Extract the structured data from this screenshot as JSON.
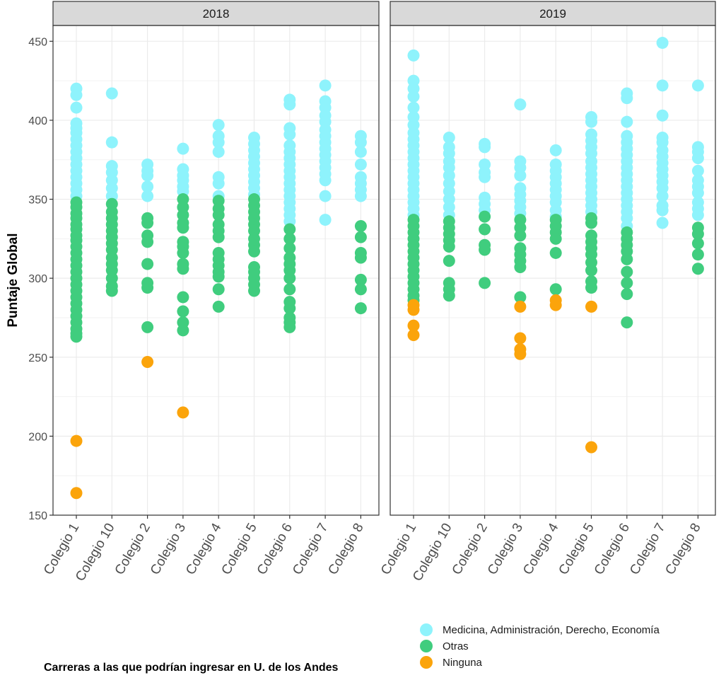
{
  "chart_data": {
    "type": "scatter",
    "ylabel": "Puntaje Global",
    "ylim": [
      150,
      460
    ],
    "y_ticks": [
      150,
      200,
      250,
      300,
      350,
      400,
      450
    ],
    "grid": true,
    "categories": [
      "Colegio 1",
      "Colegio 10",
      "Colegio 2",
      "Colegio 3",
      "Colegio 4",
      "Colegio 5",
      "Colegio 6",
      "Colegio 7",
      "Colegio 8"
    ],
    "facets": [
      "2018",
      "2019"
    ],
    "legend": {
      "title": "Carreras a las que podrían ingresar en U. de los Andes",
      "placement": "bottom",
      "entries": [
        {
          "name": "Medicina, Administración, Derecho, Economía",
          "color": "#8ef3fc"
        },
        {
          "name": "Otras",
          "color": "#40cd7e"
        },
        {
          "name": "Ninguna",
          "color": "#fba40b"
        }
      ]
    },
    "series": [
      {
        "name": "Medicina, Administración, Derecho, Economía",
        "points": {
          "2018": {
            "Colegio 1": [
              420,
              416,
              408,
              398,
              395,
              392,
              388,
              384,
              380,
              376,
              372,
              368,
              364,
              360,
              356,
              352
            ],
            "Colegio 10": [
              417,
              386,
              371,
              367,
              362,
              357,
              352
            ],
            "Colegio 2": [
              372,
              368,
              365,
              358,
              352
            ],
            "Colegio 3": [
              382,
              369,
              365,
              362,
              358,
              355
            ],
            "Colegio 4": [
              397,
              390,
              386,
              380,
              364,
              360,
              352
            ],
            "Colegio 5": [
              389,
              385,
              381,
              377,
              373,
              369,
              365,
              361,
              357,
              353
            ],
            "Colegio 6": [
              413,
              410,
              395,
              391,
              384,
              380,
              376,
              372,
              368,
              364,
              360,
              356,
              352,
              348,
              344,
              340,
              336
            ],
            "Colegio 7": [
              422,
              412,
              408,
              403,
              399,
              394,
              390,
              386,
              382,
              378,
              374,
              370,
              366,
              362,
              352,
              337
            ],
            "Colegio 8": [
              390,
              386,
              380,
              372,
              364,
              360,
              356,
              352
            ]
          },
          "2019": {
            "Colegio 1": [
              441,
              425,
              420,
              415,
              408,
              402,
              397,
              392,
              388,
              384,
              380,
              376,
              372,
              368,
              364,
              360,
              356,
              352,
              348,
              344,
              340
            ],
            "Colegio 10": [
              389,
              383,
              379,
              374,
              370,
              365,
              360,
              355,
              350,
              345,
              340
            ],
            "Colegio 2": [
              385,
              383,
              372,
              367,
              364,
              351,
              347,
              343
            ],
            "Colegio 3": [
              410,
              374,
              370,
              365,
              357,
              353,
              349,
              345,
              341
            ],
            "Colegio 4": [
              381,
              372,
              368,
              364,
              360,
              356,
              352,
              348,
              343,
              339
            ],
            "Colegio 5": [
              402,
              399,
              391,
              387,
              383,
              379,
              374,
              370,
              366,
              362,
              358,
              354,
              350,
              346,
              342
            ],
            "Colegio 6": [
              417,
              414,
              399,
              390,
              386,
              382,
              378,
              374,
              370,
              366,
              362,
              358,
              354,
              350,
              346,
              342,
              338,
              333
            ],
            "Colegio 7": [
              449,
              422,
              403,
              389,
              386,
              381,
              377,
              373,
              369,
              365,
              361,
              357,
              352,
              346,
              343,
              335
            ],
            "Colegio 8": [
              422,
              383,
              380,
              376,
              368,
              362,
              358,
              354,
              348,
              344,
              340
            ]
          }
        }
      },
      {
        "name": "Otras",
        "points": {
          "2018": {
            "Colegio 1": [
              348,
              345,
              341,
              338,
              334,
              331,
              327,
              324,
              320,
              316,
              312,
              308,
              304,
              300,
              296,
              292,
              288,
              284,
              280,
              276,
              272,
              268,
              265,
              263
            ],
            "Colegio 10": [
              347,
              342,
              338,
              334,
              330,
              326,
              322,
              318,
              313,
              309,
              305,
              300,
              295,
              292
            ],
            "Colegio 2": [
              338,
              335,
              327,
              323,
              309,
              297,
              294,
              269
            ],
            "Colegio 3": [
              350,
              345,
              340,
              335,
              332,
              323,
              320,
              316,
              309,
              306,
              288,
              279,
              272,
              267
            ],
            "Colegio 4": [
              349,
              344,
              340,
              334,
              330,
              326,
              316,
              312,
              308,
              304,
              301,
              293,
              282
            ],
            "Colegio 5": [
              350,
              346,
              342,
              338,
              334,
              330,
              325,
              321,
              317,
              307,
              304,
              300,
              296,
              292
            ],
            "Colegio 6": [
              331,
              325,
              319,
              313,
              309,
              305,
              300,
              293,
              285,
              281,
              275,
              272,
              269
            ],
            "Colegio 8": [
              333,
              326,
              316,
              313,
              299,
              293,
              281
            ]
          },
          "2019": {
            "Colegio 1": [
              337,
              333,
              329,
              325,
              321,
              317,
              313,
              309,
              305,
              301,
              297,
              293,
              289,
              286
            ],
            "Colegio 10": [
              336,
              332,
              328,
              324,
              320,
              311,
              297,
              293,
              289
            ],
            "Colegio 2": [
              339,
              331,
              321,
              318,
              297
            ],
            "Colegio 3": [
              337,
              332,
              327,
              319,
              315,
              311,
              307,
              288
            ],
            "Colegio 4": [
              337,
              333,
              329,
              325,
              316,
              293
            ],
            "Colegio 5": [
              338,
              335,
              327,
              323,
              319,
              315,
              310,
              305,
              298,
              294
            ],
            "Colegio 6": [
              329,
              325,
              321,
              317,
              312,
              304,
              297,
              290,
              272
            ],
            "Colegio 8": [
              332,
              328,
              322,
              315,
              306
            ]
          }
        }
      },
      {
        "name": "Ninguna",
        "points": {
          "2018": {
            "Colegio 1": [
              197,
              164
            ],
            "Colegio 2": [
              247
            ],
            "Colegio 3": [
              215
            ]
          },
          "2019": {
            "Colegio 1": [
              283,
              280,
              270,
              264
            ],
            "Colegio 3": [
              282,
              262,
              255,
              252
            ],
            "Colegio 4": [
              286,
              283
            ],
            "Colegio 5": [
              282,
              193
            ]
          }
        }
      }
    ]
  }
}
